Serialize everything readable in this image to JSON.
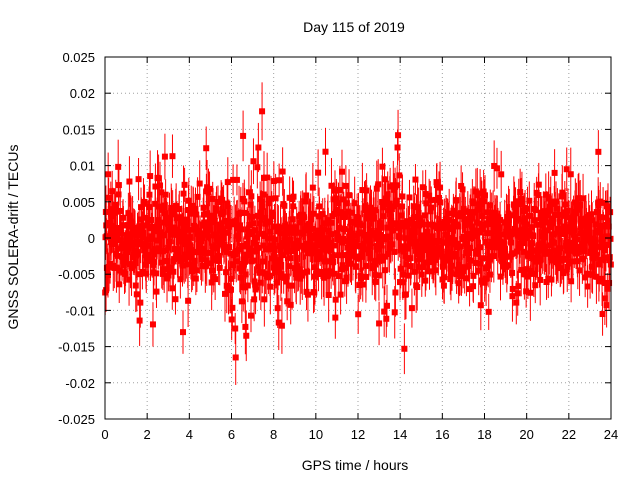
{
  "chart_data": {
    "type": "scatter",
    "title": "Day 115 of 2019",
    "xlabel": "GPS time / hours",
    "ylabel": "GNSS SOLERA-drift / TECUs",
    "xlim": [
      0,
      24
    ],
    "ylim": [
      -0.025,
      0.025
    ],
    "xticks": [
      0,
      2,
      4,
      6,
      8,
      10,
      12,
      14,
      16,
      18,
      20,
      22,
      24
    ],
    "yticks": [
      -0.025,
      -0.02,
      -0.015,
      -0.01,
      -0.005,
      0,
      0.005,
      0.01,
      0.015,
      0.02,
      0.025
    ],
    "xtick_labels": [
      "0",
      "2",
      "4",
      "6",
      "8",
      "10",
      "12",
      "14",
      "16",
      "18",
      "20",
      "22",
      "24"
    ],
    "ytick_labels": [
      "-0.025",
      "-0.02",
      "-0.015",
      "-0.01",
      "-0.005",
      "0",
      "0.005",
      "0.01",
      "0.015",
      "0.02",
      "0.025"
    ],
    "grid": true,
    "series": [
      {
        "name": "SOLERA drift",
        "color": "#ff0000",
        "marker": "square",
        "error_bars": true,
        "error_size_typical": 0.003,
        "sample_count": 1440,
        "noise_std": 0.0035,
        "notable_points": [
          {
            "x": 7.45,
            "y": 0.0175,
            "err": 0.004
          },
          {
            "x": 6.2,
            "y": -0.0165,
            "err": 0.0038
          },
          {
            "x": 14.2,
            "y": -0.0153,
            "err": 0.0035
          },
          {
            "x": 6.55,
            "y": 0.0141,
            "err": 0.0035
          },
          {
            "x": 13.9,
            "y": 0.0142,
            "err": 0.0035
          },
          {
            "x": 23.4,
            "y": 0.0119,
            "err": 0.003
          },
          {
            "x": 3.2,
            "y": 0.0113,
            "err": 0.003
          },
          {
            "x": 4.8,
            "y": 0.0124,
            "err": 0.003
          },
          {
            "x": 3.7,
            "y": -0.013,
            "err": 0.003
          },
          {
            "x": 0.15,
            "y": 0.0088,
            "err": 0.003
          },
          {
            "x": 0.05,
            "y": -0.0072,
            "err": 0.003
          },
          {
            "x": 18.2,
            "y": -0.0102,
            "err": 0.0025
          },
          {
            "x": 21.9,
            "y": 0.0095,
            "err": 0.003
          },
          {
            "x": 23.6,
            "y": -0.0105,
            "err": 0.003
          },
          {
            "x": 6.7,
            "y": -0.0135,
            "err": 0.0035
          },
          {
            "x": 13.0,
            "y": -0.0118,
            "err": 0.003
          }
        ]
      }
    ]
  }
}
